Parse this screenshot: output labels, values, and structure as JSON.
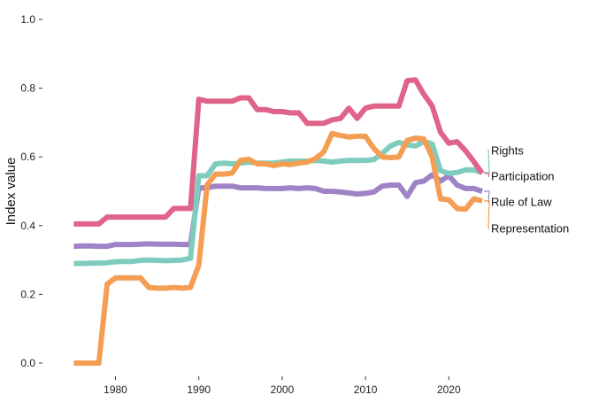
{
  "chart_data": {
    "type": "line",
    "title": "",
    "xlabel": "",
    "ylabel": "Index value",
    "xlim": [
      1974,
      2024
    ],
    "ylim": [
      0,
      1
    ],
    "xticks": [
      1980,
      1990,
      2000,
      2010,
      2020
    ],
    "yticks": [
      0.0,
      0.2,
      0.4,
      0.6,
      0.8,
      1.0
    ],
    "ytick_labels": [
      "0.0",
      "0.2",
      "0.4",
      "0.6",
      "0.8",
      "1.0"
    ],
    "grid": false,
    "legend": "direct labels at right end of lines",
    "series": [
      {
        "name": "Participation",
        "color": "#e0648a",
        "points": [
          [
            1975,
            0.405
          ],
          [
            1976,
            0.405
          ],
          [
            1977,
            0.405
          ],
          [
            1978,
            0.405
          ],
          [
            1979,
            0.425
          ],
          [
            1980,
            0.425
          ],
          [
            1981,
            0.425
          ],
          [
            1982,
            0.425
          ],
          [
            1983,
            0.425
          ],
          [
            1984,
            0.425
          ],
          [
            1985,
            0.425
          ],
          [
            1986,
            0.425
          ],
          [
            1987,
            0.45
          ],
          [
            1988,
            0.45
          ],
          [
            1989,
            0.45
          ],
          [
            1990,
            0.768
          ],
          [
            1991,
            0.762
          ],
          [
            1992,
            0.762
          ],
          [
            1993,
            0.762
          ],
          [
            1994,
            0.762
          ],
          [
            1995,
            0.772
          ],
          [
            1996,
            0.772
          ],
          [
            1997,
            0.738
          ],
          [
            1998,
            0.738
          ],
          [
            1999,
            0.732
          ],
          [
            2000,
            0.732
          ],
          [
            2001,
            0.728
          ],
          [
            2002,
            0.728
          ],
          [
            2003,
            0.698
          ],
          [
            2004,
            0.698
          ],
          [
            2005,
            0.698
          ],
          [
            2006,
            0.708
          ],
          [
            2007,
            0.712
          ],
          [
            2008,
            0.742
          ],
          [
            2009,
            0.712
          ],
          [
            2010,
            0.742
          ],
          [
            2011,
            0.748
          ],
          [
            2012,
            0.748
          ],
          [
            2013,
            0.748
          ],
          [
            2014,
            0.748
          ],
          [
            2015,
            0.822
          ],
          [
            2016,
            0.824
          ],
          [
            2017,
            0.782
          ],
          [
            2018,
            0.748
          ],
          [
            2019,
            0.672
          ],
          [
            2020,
            0.64
          ],
          [
            2021,
            0.644
          ],
          [
            2022,
            0.618
          ],
          [
            2023,
            0.586
          ],
          [
            2024,
            0.552
          ]
        ]
      },
      {
        "name": "Rights",
        "color": "#7fcbbd",
        "points": [
          [
            1975,
            0.29
          ],
          [
            1976,
            0.29
          ],
          [
            1977,
            0.291
          ],
          [
            1978,
            0.291
          ],
          [
            1979,
            0.292
          ],
          [
            1980,
            0.295
          ],
          [
            1981,
            0.296
          ],
          [
            1982,
            0.296
          ],
          [
            1983,
            0.299
          ],
          [
            1984,
            0.3
          ],
          [
            1985,
            0.299
          ],
          [
            1986,
            0.298
          ],
          [
            1987,
            0.299
          ],
          [
            1988,
            0.3
          ],
          [
            1989,
            0.305
          ],
          [
            1990,
            0.545
          ],
          [
            1991,
            0.545
          ],
          [
            1992,
            0.58
          ],
          [
            1993,
            0.582
          ],
          [
            1994,
            0.58
          ],
          [
            1995,
            0.582
          ],
          [
            1996,
            0.585
          ],
          [
            1997,
            0.582
          ],
          [
            1998,
            0.582
          ],
          [
            1999,
            0.582
          ],
          [
            2000,
            0.585
          ],
          [
            2001,
            0.588
          ],
          [
            2002,
            0.588
          ],
          [
            2003,
            0.588
          ],
          [
            2004,
            0.59
          ],
          [
            2005,
            0.588
          ],
          [
            2006,
            0.585
          ],
          [
            2007,
            0.588
          ],
          [
            2008,
            0.59
          ],
          [
            2009,
            0.59
          ],
          [
            2010,
            0.59
          ],
          [
            2011,
            0.592
          ],
          [
            2012,
            0.61
          ],
          [
            2013,
            0.632
          ],
          [
            2014,
            0.642
          ],
          [
            2015,
            0.635
          ],
          [
            2016,
            0.632
          ],
          [
            2017,
            0.645
          ],
          [
            2018,
            0.638
          ],
          [
            2019,
            0.56
          ],
          [
            2020,
            0.552
          ],
          [
            2021,
            0.555
          ],
          [
            2022,
            0.562
          ],
          [
            2023,
            0.562
          ],
          [
            2024,
            0.555
          ]
        ]
      },
      {
        "name": "Rule of Law",
        "color": "#9f83c6",
        "points": [
          [
            1975,
            0.34
          ],
          [
            1976,
            0.341
          ],
          [
            1977,
            0.341
          ],
          [
            1978,
            0.34
          ],
          [
            1979,
            0.34
          ],
          [
            1980,
            0.345
          ],
          [
            1981,
            0.345
          ],
          [
            1982,
            0.345
          ],
          [
            1983,
            0.346
          ],
          [
            1984,
            0.347
          ],
          [
            1985,
            0.346
          ],
          [
            1986,
            0.346
          ],
          [
            1987,
            0.346
          ],
          [
            1988,
            0.345
          ],
          [
            1989,
            0.345
          ],
          [
            1990,
            0.51
          ],
          [
            1991,
            0.51
          ],
          [
            1992,
            0.515
          ],
          [
            1993,
            0.515
          ],
          [
            1994,
            0.515
          ],
          [
            1995,
            0.51
          ],
          [
            1996,
            0.51
          ],
          [
            1997,
            0.51
          ],
          [
            1998,
            0.508
          ],
          [
            1999,
            0.508
          ],
          [
            2000,
            0.508
          ],
          [
            2001,
            0.51
          ],
          [
            2002,
            0.508
          ],
          [
            2003,
            0.51
          ],
          [
            2004,
            0.508
          ],
          [
            2005,
            0.5
          ],
          [
            2006,
            0.5
          ],
          [
            2007,
            0.498
          ],
          [
            2008,
            0.495
          ],
          [
            2009,
            0.492
          ],
          [
            2010,
            0.494
          ],
          [
            2011,
            0.498
          ],
          [
            2012,
            0.515
          ],
          [
            2013,
            0.518
          ],
          [
            2014,
            0.518
          ],
          [
            2015,
            0.485
          ],
          [
            2016,
            0.525
          ],
          [
            2017,
            0.53
          ],
          [
            2018,
            0.548
          ],
          [
            2019,
            0.53
          ],
          [
            2020,
            0.545
          ],
          [
            2021,
            0.518
          ],
          [
            2022,
            0.508
          ],
          [
            2023,
            0.508
          ],
          [
            2024,
            0.5
          ]
        ]
      },
      {
        "name": "Representation",
        "color": "#f49e53",
        "points": [
          [
            1975,
            0.0
          ],
          [
            1976,
            0.0
          ],
          [
            1977,
            0.0
          ],
          [
            1978,
            0.0
          ],
          [
            1979,
            0.23
          ],
          [
            1980,
            0.248
          ],
          [
            1981,
            0.248
          ],
          [
            1982,
            0.248
          ],
          [
            1983,
            0.248
          ],
          [
            1984,
            0.22
          ],
          [
            1985,
            0.218
          ],
          [
            1986,
            0.218
          ],
          [
            1987,
            0.22
          ],
          [
            1988,
            0.218
          ],
          [
            1989,
            0.22
          ],
          [
            1990,
            0.285
          ],
          [
            1991,
            0.518
          ],
          [
            1992,
            0.55
          ],
          [
            1993,
            0.55
          ],
          [
            1994,
            0.553
          ],
          [
            1995,
            0.59
          ],
          [
            1996,
            0.593
          ],
          [
            1997,
            0.58
          ],
          [
            1998,
            0.58
          ],
          [
            1999,
            0.575
          ],
          [
            2000,
            0.58
          ],
          [
            2001,
            0.578
          ],
          [
            2002,
            0.582
          ],
          [
            2003,
            0.585
          ],
          [
            2004,
            0.595
          ],
          [
            2005,
            0.615
          ],
          [
            2006,
            0.668
          ],
          [
            2007,
            0.662
          ],
          [
            2008,
            0.658
          ],
          [
            2009,
            0.66
          ],
          [
            2010,
            0.66
          ],
          [
            2011,
            0.625
          ],
          [
            2012,
            0.6
          ],
          [
            2013,
            0.598
          ],
          [
            2014,
            0.6
          ],
          [
            2015,
            0.648
          ],
          [
            2016,
            0.655
          ],
          [
            2017,
            0.652
          ],
          [
            2018,
            0.6
          ],
          [
            2019,
            0.478
          ],
          [
            2020,
            0.475
          ],
          [
            2021,
            0.45
          ],
          [
            2022,
            0.448
          ],
          [
            2023,
            0.478
          ],
          [
            2024,
            0.472
          ]
        ]
      }
    ]
  }
}
